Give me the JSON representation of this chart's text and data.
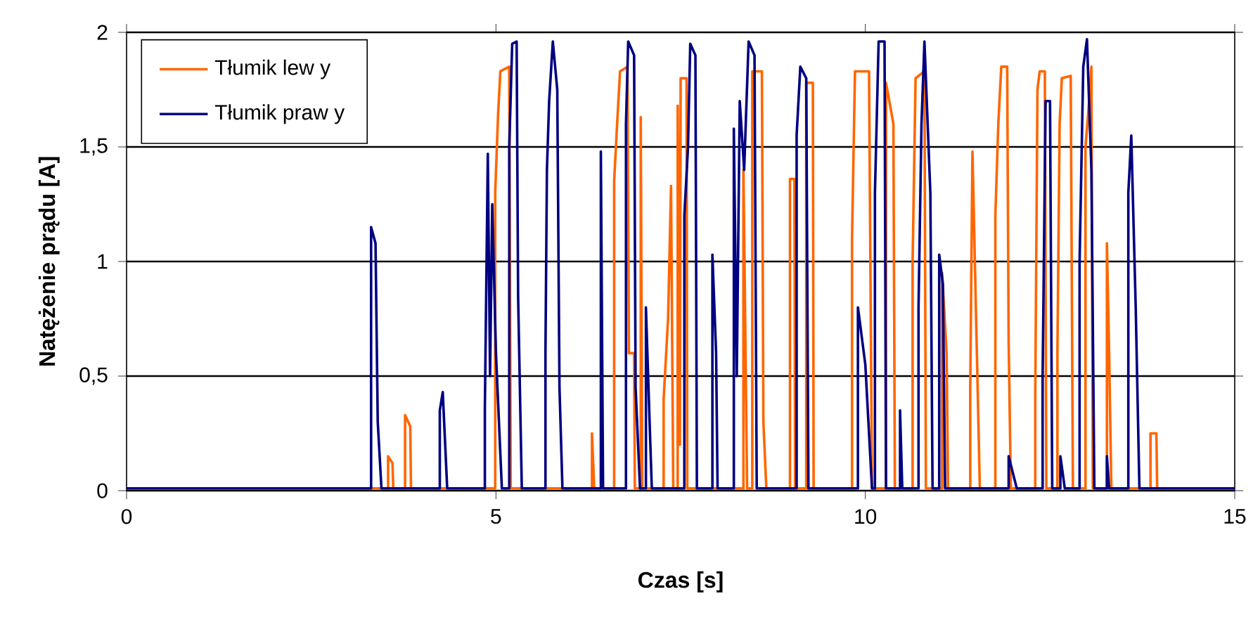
{
  "chart_data": {
    "type": "line",
    "xlabel": "Czas [s]",
    "ylabel": "Natężenie prądu [A]",
    "xlim": [
      0,
      15
    ],
    "xticks": [
      0,
      5,
      10,
      15
    ],
    "ylim": [
      0,
      2
    ],
    "yticks": [
      0,
      {
        "value": 0.5,
        "label": "0,5"
      },
      1,
      {
        "value": 1.5,
        "label": "1,5"
      },
      2
    ],
    "grid": "y",
    "legend": "top left",
    "series": [
      {
        "name": "Tłumik lew y",
        "color": "#ff6600",
        "x": [
          0,
          3.54,
          3.54,
          3.6,
          3.61,
          3.77,
          3.77,
          3.84,
          3.85,
          4.99,
          4.99,
          5.03,
          5.06,
          5.18,
          5.2,
          6.3,
          6.3,
          6.33,
          6.6,
          6.6,
          6.64,
          6.68,
          6.78,
          6.8,
          6.87,
          6.88,
          6.96,
          6.96,
          6.98,
          7.27,
          7.27,
          7.33,
          7.37,
          7.4,
          7.46,
          7.46,
          7.49,
          7.5,
          7.58,
          7.59,
          8.35,
          8.35,
          8.4,
          8.47,
          8.47,
          8.6,
          8.62,
          8.66,
          8.98,
          8.98,
          9.04,
          9.05,
          9.2,
          9.2,
          9.29,
          9.3,
          9.82,
          9.82,
          9.86,
          10.05,
          10.09,
          10.28,
          10.28,
          10.38,
          10.4,
          10.64,
          10.64,
          10.68,
          10.8,
          10.82,
          11.04,
          11.04,
          11.1,
          11.12,
          11.42,
          11.42,
          11.45,
          11.52,
          11.55,
          11.76,
          11.76,
          11.8,
          11.84,
          11.92,
          11.94,
          11.97,
          12.3,
          12.3,
          12.33,
          12.36,
          12.43,
          12.45,
          12.6,
          12.6,
          12.63,
          12.66,
          12.78,
          12.81,
          12.98,
          12.98,
          13.03,
          13.06,
          13.08,
          13.27,
          13.27,
          13.3,
          13.33,
          13.86,
          13.86,
          13.94,
          13.95,
          15
        ],
        "values": [
          0.01,
          0.01,
          0.15,
          0.12,
          0.01,
          0.01,
          0.33,
          0.28,
          0.01,
          0.01,
          1.3,
          1.65,
          1.83,
          1.85,
          0.01,
          0.01,
          0.25,
          0.01,
          0.01,
          1.35,
          1.6,
          1.83,
          1.85,
          0.6,
          0.6,
          0.01,
          0.01,
          1.63,
          0.01,
          0.01,
          0.4,
          0.75,
          1.33,
          0.01,
          0.01,
          1.68,
          0.2,
          1.8,
          1.8,
          0.01,
          0.01,
          1.4,
          0.01,
          0.01,
          1.83,
          1.83,
          0.3,
          0.01,
          0.01,
          1.36,
          1.36,
          0.01,
          0.01,
          1.78,
          1.78,
          0.01,
          0.01,
          1.1,
          1.83,
          1.83,
          0.01,
          0.01,
          1.78,
          1.6,
          0.01,
          0.01,
          1.0,
          1.8,
          1.83,
          0.01,
          0.01,
          0.95,
          0.6,
          0.01,
          0.01,
          0.45,
          1.48,
          0.45,
          0.01,
          0.01,
          1.2,
          1.6,
          1.85,
          1.85,
          0.65,
          0.01,
          0.01,
          0.4,
          1.75,
          1.83,
          1.83,
          0.01,
          0.01,
          0.6,
          1.6,
          1.8,
          1.81,
          0.01,
          0.01,
          1.5,
          1.7,
          1.85,
          0.01,
          0.01,
          1.08,
          0.6,
          0.01,
          0.01,
          0.25,
          0.25,
          0.01,
          0.01
        ]
      },
      {
        "name": "Tłumik praw y",
        "color": "#000080",
        "x": [
          0,
          3.31,
          3.31,
          3.37,
          3.4,
          3.45,
          4.24,
          4.24,
          4.28,
          4.34,
          4.85,
          4.85,
          4.89,
          4.92,
          4.95,
          5.0,
          5.08,
          5.18,
          5.18,
          5.22,
          5.28,
          5.3,
          5.35,
          5.67,
          5.67,
          5.69,
          5.72,
          5.77,
          5.83,
          5.86,
          5.9,
          6.42,
          6.42,
          6.45,
          6.76,
          6.76,
          6.79,
          6.87,
          6.89,
          6.95,
          7.03,
          7.03,
          7.08,
          7.11,
          7.55,
          7.55,
          7.6,
          7.63,
          7.7,
          7.72,
          7.93,
          7.93,
          7.98,
          8.0,
          8.22,
          8.22,
          8.26,
          8.3,
          8.36,
          8.42,
          8.5,
          8.53,
          9.07,
          9.07,
          9.12,
          9.2,
          9.23,
          9.9,
          9.9,
          10.0,
          10.09,
          10.13,
          10.13,
          10.18,
          10.26,
          10.28,
          10.47,
          10.47,
          10.5,
          10.72,
          10.72,
          10.76,
          10.8,
          10.88,
          10.91,
          11.0,
          11.0,
          11.05,
          11.08,
          11.94,
          11.94,
          12.05,
          12.4,
          12.4,
          12.44,
          12.5,
          12.53,
          12.64,
          12.64,
          12.7,
          12.9,
          12.9,
          12.95,
          13.0,
          13.06,
          13.1,
          13.27,
          13.27,
          13.3,
          13.56,
          13.56,
          13.6,
          13.66,
          13.71,
          15
        ],
        "values": [
          0.01,
          0.01,
          1.15,
          1.08,
          0.3,
          0.01,
          0.01,
          0.35,
          0.43,
          0.01,
          0.01,
          0.36,
          1.47,
          0.5,
          1.25,
          0.6,
          0.01,
          0.01,
          1.5,
          1.95,
          1.96,
          0.85,
          0.01,
          0.01,
          0.6,
          1.4,
          1.7,
          1.96,
          1.75,
          0.45,
          0.01,
          0.01,
          1.48,
          0.01,
          0.01,
          1.6,
          1.96,
          1.9,
          0.45,
          0.01,
          0.01,
          0.8,
          0.3,
          0.01,
          0.01,
          1.2,
          1.5,
          1.95,
          1.9,
          0.01,
          0.01,
          1.03,
          0.6,
          0.01,
          0.01,
          1.58,
          0.5,
          1.7,
          1.4,
          1.96,
          1.9,
          0.01,
          0.01,
          1.55,
          1.85,
          1.8,
          0.01,
          0.01,
          0.8,
          0.55,
          0.01,
          0.01,
          1.3,
          1.96,
          1.96,
          0.01,
          0.01,
          0.35,
          0.01,
          0.01,
          0.8,
          1.6,
          1.96,
          1.3,
          0.01,
          0.01,
          1.03,
          0.9,
          0.01,
          0.01,
          0.15,
          0.01,
          0.01,
          0.5,
          1.7,
          1.7,
          0.01,
          0.01,
          0.15,
          0.01,
          0.01,
          1.0,
          1.85,
          1.97,
          1.4,
          0.01,
          0.01,
          0.15,
          0.01,
          0.01,
          1.3,
          1.55,
          0.8,
          0.01,
          0.01
        ]
      }
    ]
  }
}
